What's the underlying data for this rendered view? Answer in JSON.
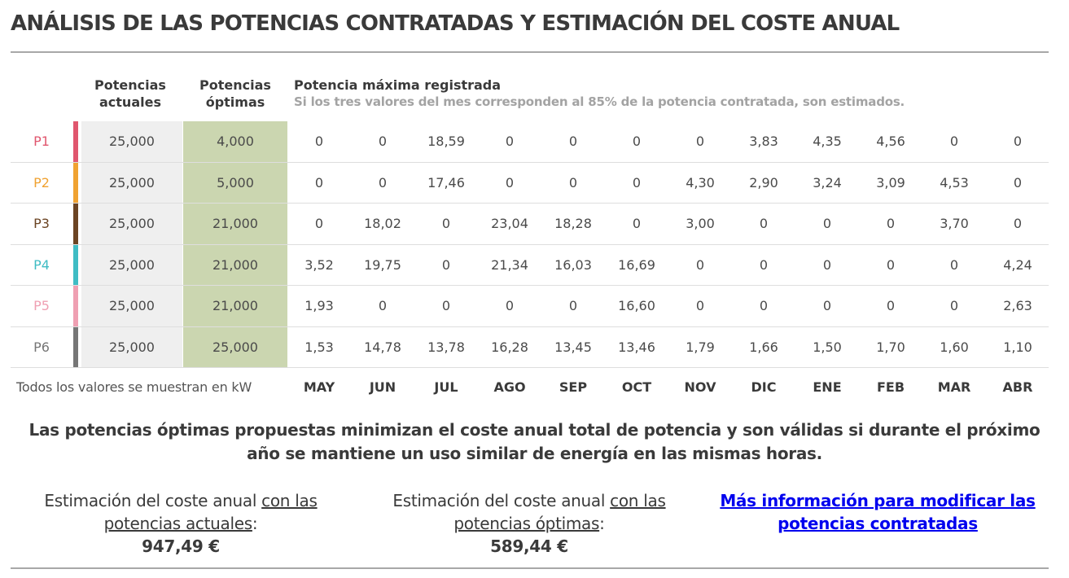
{
  "title": "ANÁLISIS DE LAS POTENCIAS CONTRATADAS Y ESTIMACIÓN DEL COSTE ANUAL",
  "headers": {
    "actual": "Potencias actuales",
    "optimal": "Potencias óptimas",
    "max_recorded": "Potencia máxima registrada",
    "max_note": "Si los tres valores del mes corresponden al 85% de la potencia contratada, son estimados."
  },
  "colors": {
    "P1": "#e0566e",
    "P2": "#f0a231",
    "P3": "#6b4423",
    "P4": "#3fbcc4",
    "P5": "#ef9fb2",
    "P6": "#767676",
    "optimal_bg": "#cbd6b0",
    "actual_bg": "#efefef",
    "link": "#0000ee"
  },
  "rows": [
    {
      "period": "P1",
      "actual": "25,000",
      "optimal": "4,000",
      "values": [
        "0",
        "0",
        "18,59",
        "0",
        "0",
        "0",
        "0",
        "3,83",
        "4,35",
        "4,56",
        "0",
        "0"
      ]
    },
    {
      "period": "P2",
      "actual": "25,000",
      "optimal": "5,000",
      "values": [
        "0",
        "0",
        "17,46",
        "0",
        "0",
        "0",
        "4,30",
        "2,90",
        "3,24",
        "3,09",
        "4,53",
        "0"
      ]
    },
    {
      "period": "P3",
      "actual": "25,000",
      "optimal": "21,000",
      "values": [
        "0",
        "18,02",
        "0",
        "23,04",
        "18,28",
        "0",
        "3,00",
        "0",
        "0",
        "0",
        "3,70",
        "0"
      ]
    },
    {
      "period": "P4",
      "actual": "25,000",
      "optimal": "21,000",
      "values": [
        "3,52",
        "19,75",
        "0",
        "21,34",
        "16,03",
        "16,69",
        "0",
        "0",
        "0",
        "0",
        "0",
        "4,24"
      ]
    },
    {
      "period": "P5",
      "actual": "25,000",
      "optimal": "21,000",
      "values": [
        "1,93",
        "0",
        "0",
        "0",
        "0",
        "16,60",
        "0",
        "0",
        "0",
        "0",
        "0",
        "2,63"
      ]
    },
    {
      "period": "P6",
      "actual": "25,000",
      "optimal": "25,000",
      "values": [
        "1,53",
        "14,78",
        "13,78",
        "16,28",
        "13,45",
        "13,46",
        "1,79",
        "1,66",
        "1,50",
        "1,70",
        "1,60",
        "1,10"
      ]
    }
  ],
  "unit_note": "Todos los valores se muestran en kW",
  "months": [
    "MAY",
    "JUN",
    "JUL",
    "AGO",
    "SEP",
    "OCT",
    "NOV",
    "DIC",
    "ENE",
    "FEB",
    "MAR",
    "ABR"
  ],
  "summary": "Las potencias óptimas propuestas minimizan el coste anual total de potencia y son válidas si durante el próximo año se mantiene un uso similar de energía en las mismas horas.",
  "cost_actual": {
    "prefix": "Estimación del coste anual ",
    "linked": "con las potencias actuales",
    "suffix": ":",
    "amount": "947,49 €"
  },
  "cost_optimal": {
    "prefix": "Estimación del coste anual ",
    "linked": "con las potencias óptimas",
    "suffix": ":",
    "amount": "589,44 €"
  },
  "more_info_link": "Más información para modificar las potencias contratadas"
}
